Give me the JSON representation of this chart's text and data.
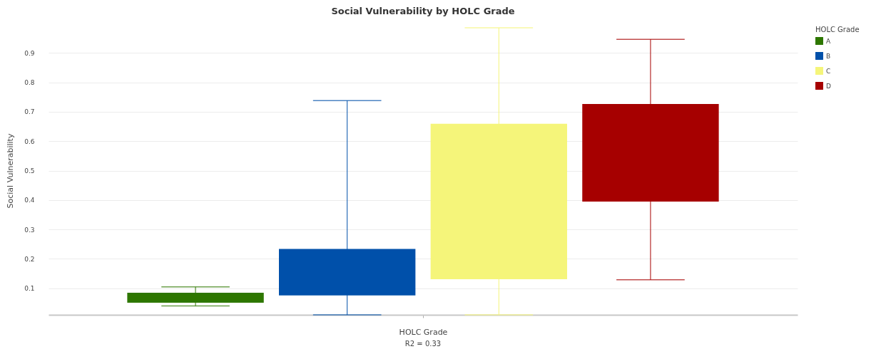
{
  "chart_data": {
    "type": "box",
    "title": "Social Vulnerability by HOLC Grade",
    "xlabel": "HOLC Grade",
    "ylabel": "Social Vulnerability",
    "legend_title": "HOLC Grade",
    "annotations": [
      "R2 = 0.33"
    ],
    "categories": [
      null
    ],
    "series": [
      {
        "name": "A",
        "color": "#2e7700",
        "boxes": [
          {
            "low": 0.04,
            "q1": 0.051,
            "median": null,
            "q3": 0.085,
            "high": 0.105
          }
        ]
      },
      {
        "name": "B",
        "color": "#0050aa",
        "boxes": [
          {
            "low": 0.01,
            "q1": 0.076,
            "median": null,
            "q3": 0.234,
            "high": 0.738
          }
        ]
      },
      {
        "name": "C",
        "color": "#f5f57a",
        "boxes": [
          {
            "low": 0.01,
            "q1": 0.131,
            "median": null,
            "q3": 0.659,
            "high": 0.985
          }
        ]
      },
      {
        "name": "D",
        "color": "#a60000",
        "boxes": [
          {
            "low": 0.129,
            "q1": 0.395,
            "median": null,
            "q3": 0.726,
            "high": 0.946
          }
        ]
      }
    ],
    "ylim": [
      0.01,
      0.99
    ],
    "yticks": [
      0.1,
      0.2,
      0.3,
      0.4,
      0.5,
      0.6,
      0.7,
      0.8,
      0.9
    ],
    "grid": "y",
    "legend": "right",
    "tick_labels": "y"
  }
}
